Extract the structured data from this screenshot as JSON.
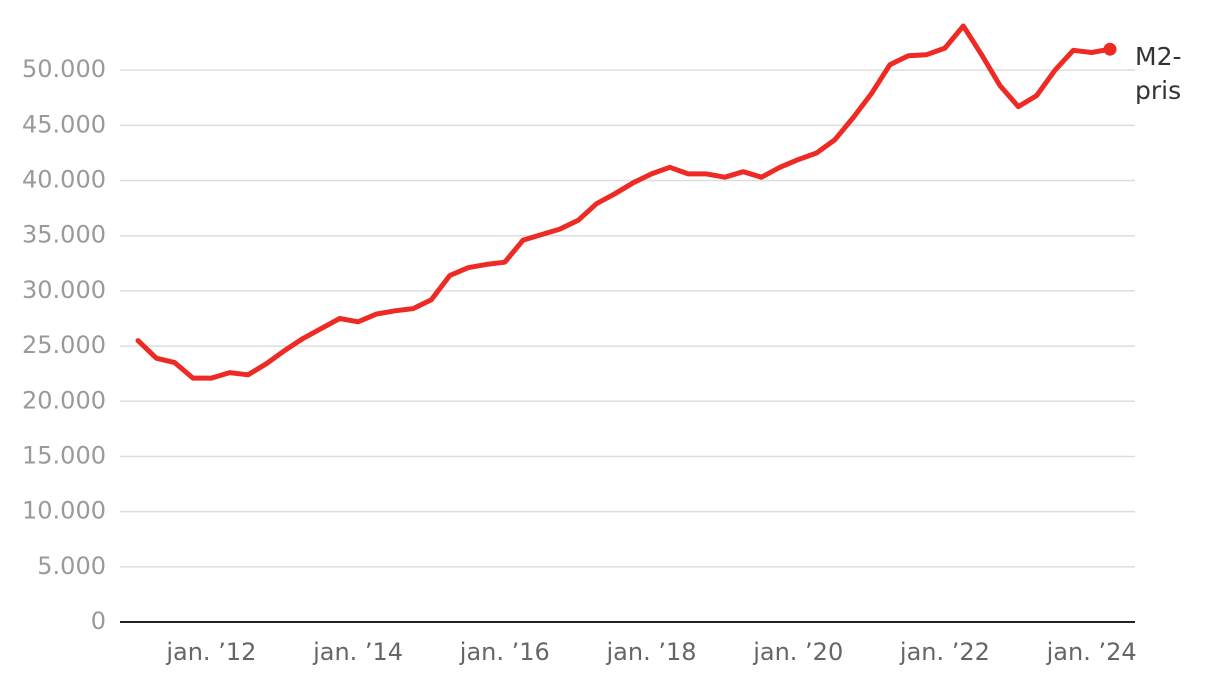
{
  "chart_data": {
    "type": "line",
    "categories": [
      null,
      null,
      null,
      null,
      "jan. ’12",
      null,
      null,
      null,
      null,
      null,
      null,
      null,
      "jan. ’14",
      null,
      null,
      null,
      null,
      null,
      null,
      null,
      "jan. ’16",
      null,
      null,
      null,
      null,
      null,
      null,
      null,
      "jan. ’18",
      null,
      null,
      null,
      null,
      null,
      null,
      null,
      "jan. ’20",
      null,
      null,
      null,
      null,
      null,
      null,
      null,
      "jan. ’22",
      null,
      null,
      null,
      null,
      null,
      null,
      null,
      "jan. ’24",
      null
    ],
    "series": [
      {
        "name": "M2-pris",
        "color": "#ee2a24",
        "values": [
          25500,
          23900,
          23500,
          22100,
          22100,
          22600,
          22400,
          23400,
          24600,
          25700,
          26600,
          27500,
          27200,
          27900,
          28200,
          28400,
          29200,
          31400,
          32100,
          32400,
          32600,
          34600,
          35100,
          35600,
          36400,
          37900,
          38800,
          39800,
          40600,
          41200,
          40600,
          40600,
          40300,
          40800,
          40300,
          41200,
          41900,
          42500,
          43700,
          45700,
          47900,
          50500,
          51300,
          51400,
          52000,
          54000,
          51400,
          48600,
          46700,
          47700,
          50000,
          51800,
          51600,
          51900
        ]
      }
    ],
    "ylim": [
      0,
      55000
    ],
    "yticks": [
      0,
      {
        "value": 5000,
        "label": "5.000"
      },
      {
        "value": 10000,
        "label": "10.000"
      },
      {
        "value": 15000,
        "label": "15.000"
      },
      {
        "value": 20000,
        "label": "20.000"
      },
      {
        "value": 25000,
        "label": "25.000"
      },
      {
        "value": 30000,
        "label": "30.000"
      },
      {
        "value": 35000,
        "label": "35.000"
      },
      {
        "value": 40000,
        "label": "40.000"
      },
      {
        "value": 45000,
        "label": "45.000"
      },
      {
        "value": 50000,
        "label": "50.000"
      }
    ],
    "grid": true
  }
}
